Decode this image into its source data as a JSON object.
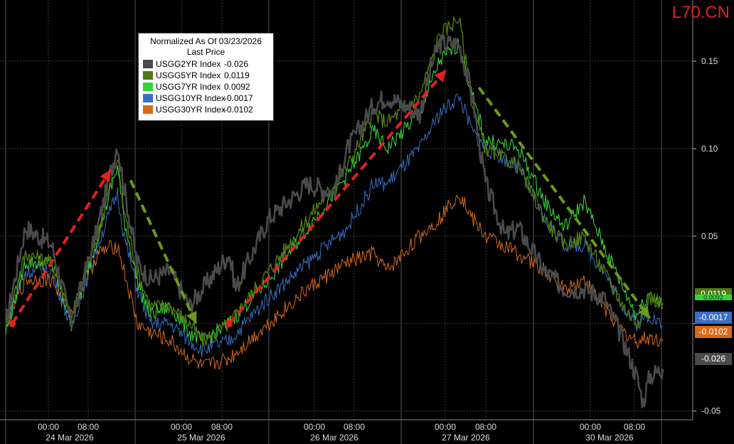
{
  "watermark": "L70.CN",
  "legend": {
    "title": "Normalized As Of 03/23/2026",
    "subtitle": "Last Price",
    "items": [
      {
        "name": "USGG2YR Index",
        "value": "-0.026",
        "color": "#4a4a4a"
      },
      {
        "name": "USGG5YR Index",
        "value": "0.0119",
        "color": "#4f7a12"
      },
      {
        "name": "USGG7YR Index",
        "value": "0.0092",
        "color": "#35d43a"
      },
      {
        "name": "USGG10YR Index",
        "value": "-0.0017",
        "color": "#3a6fc4"
      },
      {
        "name": "USGG30YR Index",
        "value": "-0.0102",
        "color": "#d96a1a"
      }
    ]
  },
  "last_price_tags": [
    {
      "label": "0.0119",
      "color": "#4f7a12",
      "value": 0.0119
    },
    {
      "label": "0.0092",
      "color": "#35d43a",
      "value": 0.0092
    },
    {
      "label": "-0.0017",
      "color": "#3a6fc4",
      "value": -0.0017
    },
    {
      "label": "-0.0102",
      "color": "#d96a1a",
      "value": -0.0102
    },
    {
      "label": "-0.026",
      "color": "#4a4a4a",
      "value": -0.026
    }
  ],
  "chart_data": {
    "type": "line",
    "ylim": [
      -0.055,
      0.185
    ],
    "yticks": [
      0.15,
      0.1,
      0.05,
      0.0,
      -0.05
    ],
    "ytick_labels": [
      "0.15",
      "0.10",
      "0.05",
      "",
      "-0.05"
    ],
    "x_time_ticks": [
      "00:00",
      "08:00",
      "00:00",
      "08:00",
      "00:00",
      "08:00",
      "00:00",
      "08:00",
      "00:00",
      "08:00"
    ],
    "x_date_labels": [
      "24 Mar 2026",
      "25 Mar 2026",
      "26 Mar 2026",
      "27 Mar 2026",
      "30 Mar 2026"
    ],
    "grid": true,
    "legend_placement": "top-left",
    "x_index_range": [
      0,
      100
    ],
    "series": [
      {
        "name": "USGG2YR Index",
        "color": "#4a4a4a",
        "x": [
          0,
          3,
          7,
          10,
          14,
          17,
          18,
          20,
          22,
          25,
          28,
          30,
          34,
          35,
          40,
          43,
          46,
          50,
          52,
          56,
          58,
          63,
          65,
          66,
          69,
          71,
          73,
          76,
          78,
          82,
          85,
          88,
          91,
          94,
          96,
          97,
          98,
          100
        ],
        "y": [
          0.0,
          0.055,
          0.045,
          0.0,
          0.055,
          0.103,
          0.078,
          0.035,
          0.025,
          0.03,
          0.01,
          0.02,
          0.04,
          0.02,
          0.06,
          0.07,
          0.08,
          0.075,
          0.1,
          0.125,
          0.13,
          0.12,
          0.15,
          0.16,
          0.16,
          0.13,
          0.08,
          0.05,
          0.055,
          0.03,
          0.02,
          0.02,
          0.015,
          -0.01,
          -0.03,
          -0.045,
          -0.03,
          -0.026
        ]
      },
      {
        "name": "USGG5YR Index",
        "color": "#4f7a12",
        "x": [
          0,
          3,
          7,
          10,
          14,
          17,
          18,
          20,
          22,
          25,
          28,
          30,
          34,
          40,
          46,
          52,
          56,
          58,
          63,
          66,
          69,
          71,
          73,
          78,
          82,
          85,
          88,
          91,
          94,
          96,
          98,
          100
        ],
        "y": [
          0.0,
          0.04,
          0.035,
          0.005,
          0.05,
          0.095,
          0.065,
          0.03,
          0.01,
          0.01,
          0.0,
          -0.01,
          0.0,
          0.03,
          0.06,
          0.09,
          0.12,
          0.115,
          0.13,
          0.165,
          0.175,
          0.125,
          0.1,
          0.09,
          0.06,
          0.045,
          0.05,
          0.03,
          0.01,
          0.0,
          0.015,
          0.0119
        ]
      },
      {
        "name": "USGG7YR Index",
        "color": "#35d43a",
        "x": [
          0,
          3,
          7,
          10,
          14,
          17,
          18,
          20,
          22,
          25,
          28,
          30,
          34,
          40,
          46,
          52,
          56,
          58,
          63,
          66,
          69,
          71,
          73,
          78,
          82,
          85,
          88,
          91,
          94,
          96,
          98,
          100
        ],
        "y": [
          -0.005,
          0.035,
          0.035,
          0.0,
          0.05,
          0.09,
          0.06,
          0.025,
          0.005,
          0.01,
          -0.005,
          -0.01,
          0.0,
          0.025,
          0.055,
          0.085,
          0.11,
          0.1,
          0.12,
          0.15,
          0.16,
          0.13,
          0.105,
          0.1,
          0.07,
          0.055,
          0.07,
          0.045,
          0.02,
          0.005,
          0.018,
          0.0092
        ]
      },
      {
        "name": "USGG10YR Index",
        "color": "#3a6fc4",
        "x": [
          0,
          3,
          7,
          10,
          14,
          17,
          18,
          20,
          22,
          25,
          28,
          30,
          34,
          40,
          46,
          52,
          56,
          58,
          63,
          66,
          69,
          71,
          73,
          78,
          82,
          85,
          88,
          91,
          94,
          96,
          98,
          100
        ],
        "y": [
          0.0,
          0.03,
          0.03,
          -0.002,
          0.045,
          0.075,
          0.05,
          0.02,
          0.0,
          0.0,
          -0.01,
          -0.015,
          -0.01,
          0.015,
          0.035,
          0.055,
          0.08,
          0.08,
          0.1,
          0.12,
          0.13,
          0.11,
          0.1,
          0.09,
          0.06,
          0.045,
          0.045,
          0.03,
          0.01,
          0.0,
          0.005,
          -0.0017
        ]
      },
      {
        "name": "USGG30YR Index",
        "color": "#d96a1a",
        "x": [
          0,
          3,
          7,
          10,
          14,
          17,
          18,
          20,
          22,
          25,
          28,
          30,
          34,
          40,
          46,
          52,
          56,
          58,
          63,
          66,
          69,
          71,
          73,
          78,
          82,
          85,
          88,
          91,
          94,
          96,
          98,
          100
        ],
        "y": [
          0.0,
          0.025,
          0.025,
          0.005,
          0.04,
          0.045,
          0.03,
          0.0,
          -0.005,
          -0.01,
          -0.02,
          -0.025,
          -0.02,
          0.0,
          0.02,
          0.035,
          0.04,
          0.03,
          0.05,
          0.06,
          0.075,
          0.06,
          0.05,
          0.04,
          0.03,
          0.02,
          0.025,
          0.01,
          -0.005,
          -0.01,
          -0.008,
          -0.0102
        ]
      }
    ],
    "annotations": [
      {
        "type": "arrow",
        "color": "#e02020",
        "from": [
          1,
          0.0
        ],
        "to": [
          16,
          0.088
        ]
      },
      {
        "type": "arrow",
        "color": "#6a9a1a",
        "from": [
          19,
          0.082
        ],
        "to": [
          29,
          0.0
        ]
      },
      {
        "type": "arrow",
        "color": "#e02020",
        "from": [
          34,
          0.0
        ],
        "to": [
          67,
          0.145
        ]
      },
      {
        "type": "arrow",
        "color": "#6a9a1a",
        "from": [
          72,
          0.135
        ],
        "to": [
          98,
          0.003
        ]
      }
    ]
  }
}
